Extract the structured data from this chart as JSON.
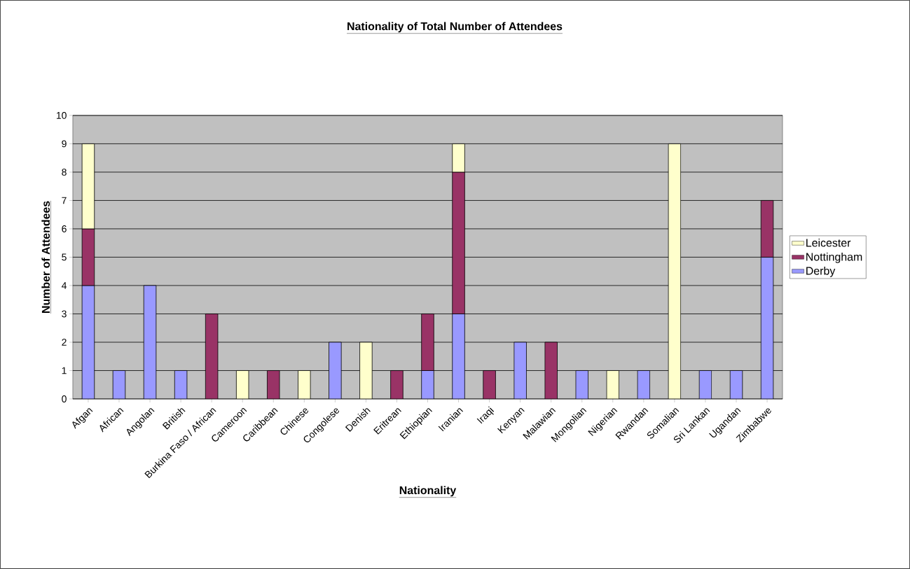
{
  "chart_data": {
    "type": "bar",
    "title": "Nationality of Total Number of Attendees",
    "xlabel": "Nationality",
    "ylabel": "Number of Attendees",
    "categories": [
      "Afgan",
      "African",
      "Angolan",
      "British",
      "Burkina Faso / African",
      "Cameroon",
      "Caribbean",
      "Chinese",
      "Congolese",
      "Denish",
      "Eritrean",
      "Ethiopian",
      "Iranian",
      "Iraqi",
      "Kenyan",
      "Malawian",
      "Mongolian",
      "Nigerian",
      "Rwandan",
      "Somalian",
      "Sri Lankan",
      "Ugandan",
      "Zimbabwe"
    ],
    "series": [
      {
        "name": "Derby",
        "color": "#9999ff",
        "values": [
          4,
          1,
          4,
          1,
          null,
          null,
          null,
          null,
          2,
          null,
          null,
          1,
          3,
          null,
          2,
          null,
          1,
          null,
          1,
          null,
          1,
          1,
          5
        ]
      },
      {
        "name": "Nottingham",
        "color": "#993366",
        "values": [
          2,
          null,
          null,
          null,
          3,
          null,
          1,
          null,
          null,
          null,
          1,
          2,
          5,
          1,
          null,
          2,
          null,
          null,
          null,
          null,
          null,
          null,
          2
        ]
      },
      {
        "name": "Leicester",
        "color": "#ffffcc",
        "values": [
          3,
          null,
          null,
          null,
          null,
          1,
          null,
          1,
          null,
          2,
          null,
          null,
          1,
          null,
          null,
          null,
          null,
          1,
          null,
          9,
          null,
          null,
          null
        ]
      }
    ],
    "stacked": true,
    "ylim": [
      0,
      10
    ],
    "yticks": [
      0,
      1,
      2,
      3,
      4,
      5,
      6,
      7,
      8,
      9,
      10
    ],
    "grid": "y",
    "legend": "right"
  }
}
